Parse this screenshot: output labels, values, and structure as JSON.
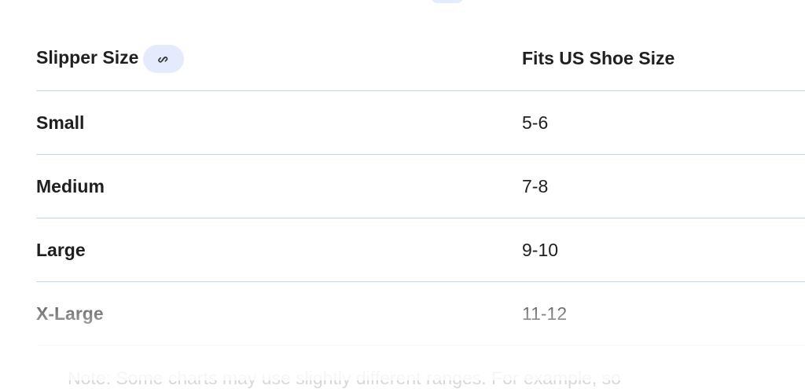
{
  "table": {
    "headers": [
      "Slipper Size",
      "Fits US Shoe Size"
    ],
    "rows": [
      {
        "size": "Small",
        "fits": "5-6"
      },
      {
        "size": "Medium",
        "fits": "7-8"
      },
      {
        "size": "Large",
        "fits": "9-10"
      },
      {
        "size": "X-Large",
        "fits": "11-12"
      }
    ]
  },
  "note": "Note: Some charts may use slightly different ranges. For example, so",
  "colors": {
    "chip": "#e3ebfc",
    "divider": "#c4d7f2"
  },
  "icons": {
    "header_link": "link-icon"
  }
}
